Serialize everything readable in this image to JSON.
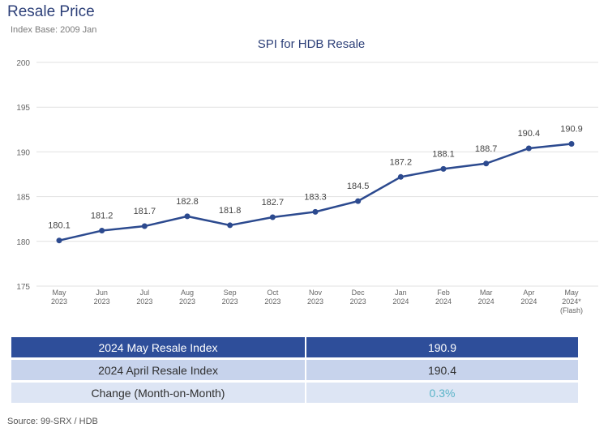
{
  "header": {
    "title": "Resale Price",
    "subtitle": "Index Base: 2009 Jan"
  },
  "colors": {
    "title": "#2c3f78",
    "line": "#2c4a8f",
    "table_dark": "#2e4e9a",
    "table_mid": "#c7d3ec",
    "table_light": "#dde5f4",
    "change_text": "#5ab4c8"
  },
  "chart_data": {
    "type": "line",
    "title": "SPI for HDB Resale",
    "categories": [
      [
        "May",
        "2023"
      ],
      [
        "Jun",
        "2023"
      ],
      [
        "Jul",
        "2023"
      ],
      [
        "Aug",
        "2023"
      ],
      [
        "Sep",
        "2023"
      ],
      [
        "Oct",
        "2023"
      ],
      [
        "Nov",
        "2023"
      ],
      [
        "Dec",
        "2023"
      ],
      [
        "Jan",
        "2024"
      ],
      [
        "Feb",
        "2024"
      ],
      [
        "Mar",
        "2024"
      ],
      [
        "Apr",
        "2024"
      ],
      [
        "May",
        "2024*",
        "(Flash)"
      ]
    ],
    "series": [
      {
        "values": [
          180.1,
          181.2,
          181.7,
          182.8,
          181.8,
          182.7,
          183.3,
          184.5,
          187.2,
          188.1,
          188.7,
          190.4,
          190.9
        ],
        "data_labels": [
          "180.1",
          "181.2",
          "181.7",
          "182.8",
          "181.8",
          "182.7",
          "183.3",
          "184.5",
          "187.2",
          "188.1",
          "188.7",
          "190.4",
          "190.9"
        ]
      }
    ],
    "ylim": [
      175,
      200
    ],
    "yticks": [
      175,
      180,
      185,
      190,
      195,
      200
    ],
    "grid": true,
    "legend": "none"
  },
  "table": {
    "rows": [
      {
        "label": "2024 May Resale Index",
        "value": "190.9"
      },
      {
        "label": "2024 April Resale Index",
        "value": "190.4"
      },
      {
        "label": "Change (Month-on-Month)",
        "value": "0.3%"
      }
    ]
  },
  "source": "Source: 99-SRX / HDB"
}
